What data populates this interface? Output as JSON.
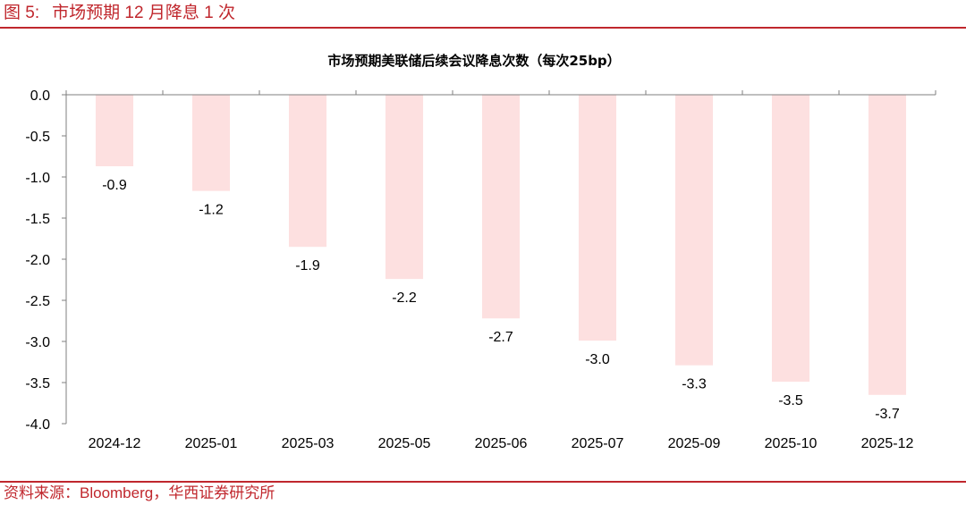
{
  "figure": {
    "label": "图 5:",
    "caption": "市场预期 12 月降息 1 次",
    "source": "资料来源：Bloomberg，华西证券研究所"
  },
  "colors": {
    "accent": "#c0272d",
    "bar": "#fde0e0",
    "axis": "#7f7f7f"
  },
  "chart_data": {
    "type": "bar",
    "title": "市场预期美联储后续会议降息次数（每次25bp）",
    "categories": [
      "2024-12",
      "2025-01",
      "2025-03",
      "2025-05",
      "2025-06",
      "2025-07",
      "2025-09",
      "2025-10",
      "2025-12"
    ],
    "values": [
      -0.87,
      -1.17,
      -1.85,
      -2.24,
      -2.72,
      -2.99,
      -3.29,
      -3.49,
      -3.65
    ],
    "data_labels": [
      "-0.9",
      "-1.2",
      "-1.9",
      "-2.2",
      "-2.7",
      "-3.0",
      "-3.3",
      "-3.5",
      "-3.7"
    ],
    "ylim": [
      -4.0,
      0.0
    ],
    "yticks": [
      0.0,
      -0.5,
      -1.0,
      -1.5,
      -2.0,
      -2.5,
      -3.0,
      -3.5,
      -4.0
    ],
    "ytick_labels": [
      "0.0",
      "-0.5",
      "-1.0",
      "-1.5",
      "-2.0",
      "-2.5",
      "-3.0",
      "-3.5",
      "-4.0"
    ],
    "xlabel": "",
    "ylabel": "",
    "grid": false,
    "legend": "none"
  }
}
